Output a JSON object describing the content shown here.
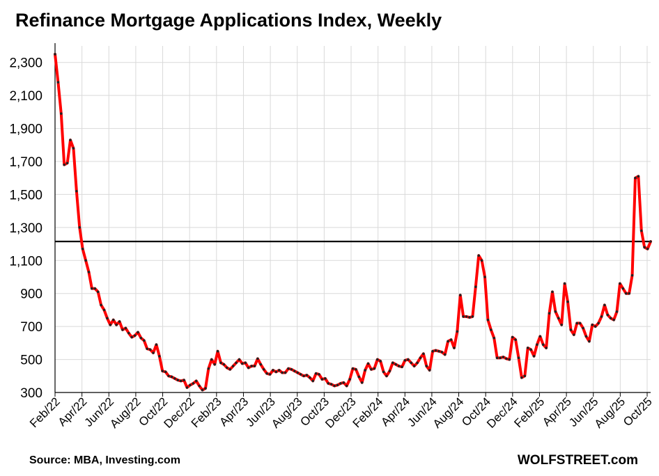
{
  "title": "Refinance Mortgage Applications Index, Weekly",
  "source": "Source: MBA, Investing.com",
  "brand": "WOLFSTREET.com",
  "colors": {
    "series": "#ff0000",
    "marker": "#222222",
    "grid": "#d9d9d9",
    "reference_line": "#000000"
  },
  "chart_data": {
    "type": "line",
    "title": "Refinance Mortgage Applications Index, Weekly",
    "xlabel": "",
    "ylabel": "",
    "ylim": [
      300,
      2400
    ],
    "yticks": [
      300,
      500,
      700,
      900,
      1100,
      1300,
      1500,
      1700,
      1900,
      2100,
      2300
    ],
    "ytick_labels": [
      "300",
      "500",
      "700",
      "900",
      "1,100",
      "1,300",
      "1,500",
      "1,700",
      "1,900",
      "2,100",
      "2,300"
    ],
    "xtick_labels": [
      "Feb/22",
      "Apr/22",
      "Jun/22",
      "Aug/22",
      "Oct/22",
      "Dec/22",
      "Feb/23",
      "Apr/23",
      "Jun/23",
      "Aug/23",
      "Oct/23",
      "Dec/23",
      "Feb/24",
      "Apr/24",
      "Jun/24",
      "Aug/24",
      "Oct/24",
      "Dec/24",
      "Feb/25",
      "Apr/25",
      "Jun/25",
      "Aug/25",
      "Oct/25"
    ],
    "grid": true,
    "reference_line": 1215,
    "markers": true,
    "series": [
      {
        "values": [
          2350,
          2180,
          1990,
          1680,
          1690,
          1830,
          1780,
          1520,
          1300,
          1170,
          1100,
          1030,
          930,
          930,
          910,
          830,
          800,
          750,
          710,
          740,
          710,
          730,
          680,
          690,
          660,
          635,
          645,
          665,
          630,
          615,
          565,
          560,
          540,
          590,
          520,
          430,
          425,
          400,
          395,
          385,
          375,
          370,
          375,
          330,
          345,
          355,
          370,
          340,
          315,
          325,
          445,
          500,
          470,
          550,
          480,
          470,
          450,
          440,
          460,
          480,
          500,
          475,
          480,
          450,
          460,
          460,
          505,
          470,
          440,
          415,
          410,
          435,
          425,
          435,
          420,
          420,
          445,
          440,
          430,
          420,
          410,
          400,
          405,
          390,
          370,
          415,
          410,
          380,
          385,
          355,
          350,
          340,
          345,
          355,
          360,
          340,
          380,
          445,
          440,
          395,
          360,
          435,
          475,
          440,
          445,
          500,
          490,
          425,
          400,
          430,
          480,
          470,
          460,
          455,
          495,
          500,
          480,
          460,
          480,
          510,
          535,
          460,
          435,
          550,
          555,
          550,
          545,
          530,
          610,
          620,
          570,
          670,
          890,
          760,
          760,
          755,
          760,
          940,
          1130,
          1100,
          1000,
          740,
          680,
          630,
          510,
          510,
          515,
          505,
          500,
          635,
          620,
          510,
          390,
          400,
          570,
          560,
          520,
          590,
          640,
          590,
          570,
          780,
          910,
          790,
          750,
          710,
          960,
          850,
          680,
          650,
          720,
          720,
          690,
          640,
          610,
          710,
          700,
          720,
          760,
          830,
          770,
          750,
          740,
          790,
          960,
          930,
          900,
          900,
          1010,
          1600,
          1610,
          1280,
          1180,
          1170,
          1215
        ]
      }
    ]
  }
}
